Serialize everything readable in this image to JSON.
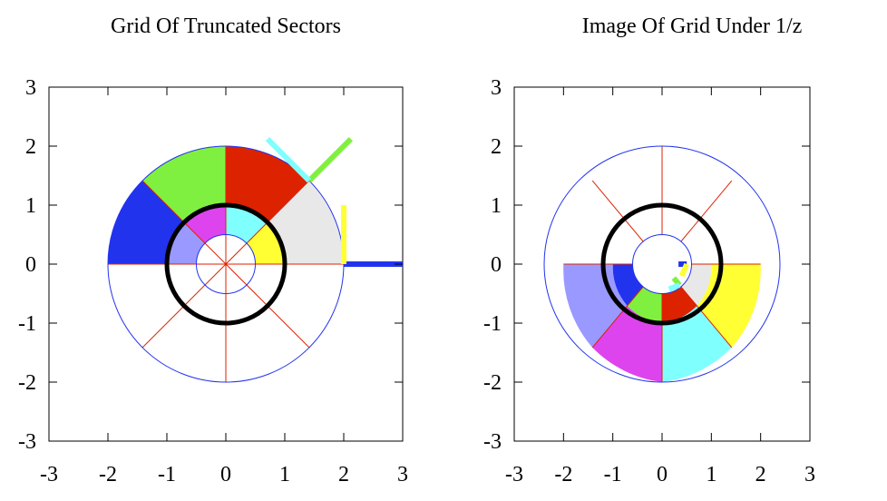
{
  "chart_data": [
    {
      "type": "polar-sector-grid",
      "title": "Grid Of Truncated Sectors",
      "xlim": [
        -3,
        3
      ],
      "ylim": [
        -3,
        3
      ],
      "x_ticks": [
        "-3",
        "-2",
        "-1",
        "0",
        "1",
        "2",
        "3"
      ],
      "y_ticks": [
        "3",
        "2",
        "1",
        "0",
        "-1",
        "-2",
        "-3"
      ],
      "radii": [
        0.5,
        1,
        2
      ],
      "unit_circle": true,
      "filled_sectors": [
        {
          "r": [
            1,
            2
          ],
          "theta_deg": [
            0,
            45
          ],
          "color": "#e8e8e8"
        },
        {
          "r": [
            1,
            2
          ],
          "theta_deg": [
            45,
            90
          ],
          "color": "#dd2200"
        },
        {
          "r": [
            1,
            2
          ],
          "theta_deg": [
            90,
            135
          ],
          "color": "#80f040"
        },
        {
          "r": [
            1,
            2
          ],
          "theta_deg": [
            135,
            180
          ],
          "color": "#2233ee"
        },
        {
          "r": [
            0.5,
            1
          ],
          "theta_deg": [
            0,
            45
          ],
          "color": "#ffff33"
        },
        {
          "r": [
            0.5,
            1
          ],
          "theta_deg": [
            45,
            90
          ],
          "color": "#80ffff"
        },
        {
          "r": [
            0.5,
            1
          ],
          "theta_deg": [
            90,
            135
          ],
          "color": "#dd44ee"
        },
        {
          "r": [
            0.5,
            1
          ],
          "theta_deg": [
            135,
            180
          ],
          "color": "#9999ff"
        }
      ],
      "markers": [
        {
          "p1": [
            2.0,
            0.0
          ],
          "p2": [
            3.0,
            0.0
          ],
          "color": "#2233ee"
        },
        {
          "p1": [
            2.0,
            0.0
          ],
          "p2": [
            2.0,
            1.0
          ],
          "color": "#ffff33"
        },
        {
          "p1": [
            1.414,
            1.414
          ],
          "p2": [
            2.121,
            2.121
          ],
          "color": "#80f040"
        },
        {
          "p1": [
            1.414,
            1.414
          ],
          "p2": [
            0.707,
            2.121
          ],
          "color": "#80ffff"
        }
      ]
    },
    {
      "type": "polar-sector-grid",
      "title": "Image Of Grid Under 1/z",
      "xlim": [
        -3,
        3
      ],
      "ylim": [
        -3,
        3
      ],
      "x_ticks": [
        "-3",
        "-2",
        "-1",
        "0",
        "1",
        "2",
        "3"
      ],
      "y_ticks": [
        "3",
        "2",
        "1",
        "0",
        "-1",
        "-2",
        "-3"
      ],
      "radii": [
        0.5,
        1,
        2
      ],
      "unit_circle": true,
      "filled_sectors": [
        {
          "r": [
            0.5,
            1
          ],
          "theta_deg": [
            -45,
            0
          ],
          "color": "#e8e8e8"
        },
        {
          "r": [
            0.5,
            1
          ],
          "theta_deg": [
            -90,
            -45
          ],
          "color": "#dd2200"
        },
        {
          "r": [
            0.5,
            1
          ],
          "theta_deg": [
            -135,
            -90
          ],
          "color": "#80f040"
        },
        {
          "r": [
            0.5,
            1
          ],
          "theta_deg": [
            -180,
            -135
          ],
          "color": "#2233ee"
        },
        {
          "r": [
            1,
            2
          ],
          "theta_deg": [
            -45,
            0
          ],
          "color": "#ffff33"
        },
        {
          "r": [
            1,
            2
          ],
          "theta_deg": [
            -90,
            -45
          ],
          "color": "#80ffff"
        },
        {
          "r": [
            1,
            2
          ],
          "theta_deg": [
            -135,
            -90
          ],
          "color": "#dd44ee"
        },
        {
          "r": [
            1,
            2
          ],
          "theta_deg": [
            -180,
            -135
          ],
          "color": "#9999ff"
        }
      ],
      "markers": [
        {
          "p1": [
            0.5,
            0.0
          ],
          "p2": [
            0.333,
            0.0
          ],
          "color": "#2233ee"
        },
        {
          "p1": [
            0.5,
            0.0
          ],
          "p2": [
            0.4,
            -0.2
          ],
          "color": "#ffff33"
        },
        {
          "p1": [
            0.354,
            -0.354
          ],
          "p2": [
            0.236,
            -0.236
          ],
          "color": "#80f040"
        },
        {
          "p1": [
            0.354,
            -0.354
          ],
          "p2": [
            0.141,
            -0.424
          ],
          "color": "#80ffff"
        }
      ]
    }
  ]
}
